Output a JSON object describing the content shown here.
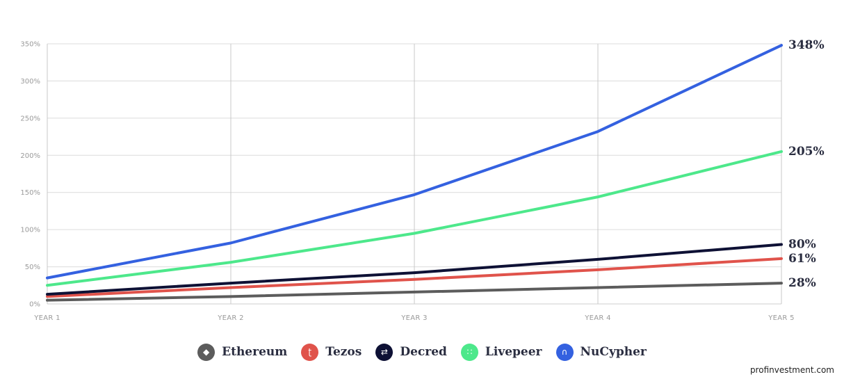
{
  "chart_data": {
    "type": "line",
    "categories": [
      "YEAR 1",
      "YEAR 2",
      "YEAR 3",
      "YEAR 4",
      "YEAR 5"
    ],
    "y_ticks": [
      "0%",
      "50%",
      "100%",
      "150%",
      "200%",
      "250%",
      "300%",
      "350%"
    ],
    "ylim": [
      0,
      350
    ],
    "grid": true,
    "legend_position": "bottom",
    "series": [
      {
        "name": "Ethereum",
        "color": "#5c5c5c",
        "icon": "ethereum-icon",
        "values": [
          5,
          10,
          16,
          22,
          28
        ],
        "end_label": "28%"
      },
      {
        "name": "Tezos",
        "color": "#e0534b",
        "icon": "tezos-icon",
        "values": [
          10,
          22,
          33,
          46,
          61
        ],
        "end_label": "61%"
      },
      {
        "name": "Decred",
        "color": "#0e1135",
        "icon": "decred-icon",
        "values": [
          13,
          28,
          42,
          60,
          80
        ],
        "end_label": "80%"
      },
      {
        "name": "Livepeer",
        "color": "#4de88b",
        "icon": "livepeer-icon",
        "values": [
          25,
          56,
          95,
          144,
          205
        ],
        "end_label": "205%"
      },
      {
        "name": "NuCypher",
        "color": "#3461e0",
        "icon": "nucypher-icon",
        "values": [
          35,
          82,
          147,
          232,
          348
        ],
        "end_label": "348%"
      }
    ]
  },
  "watermark": "profinvestment.com"
}
